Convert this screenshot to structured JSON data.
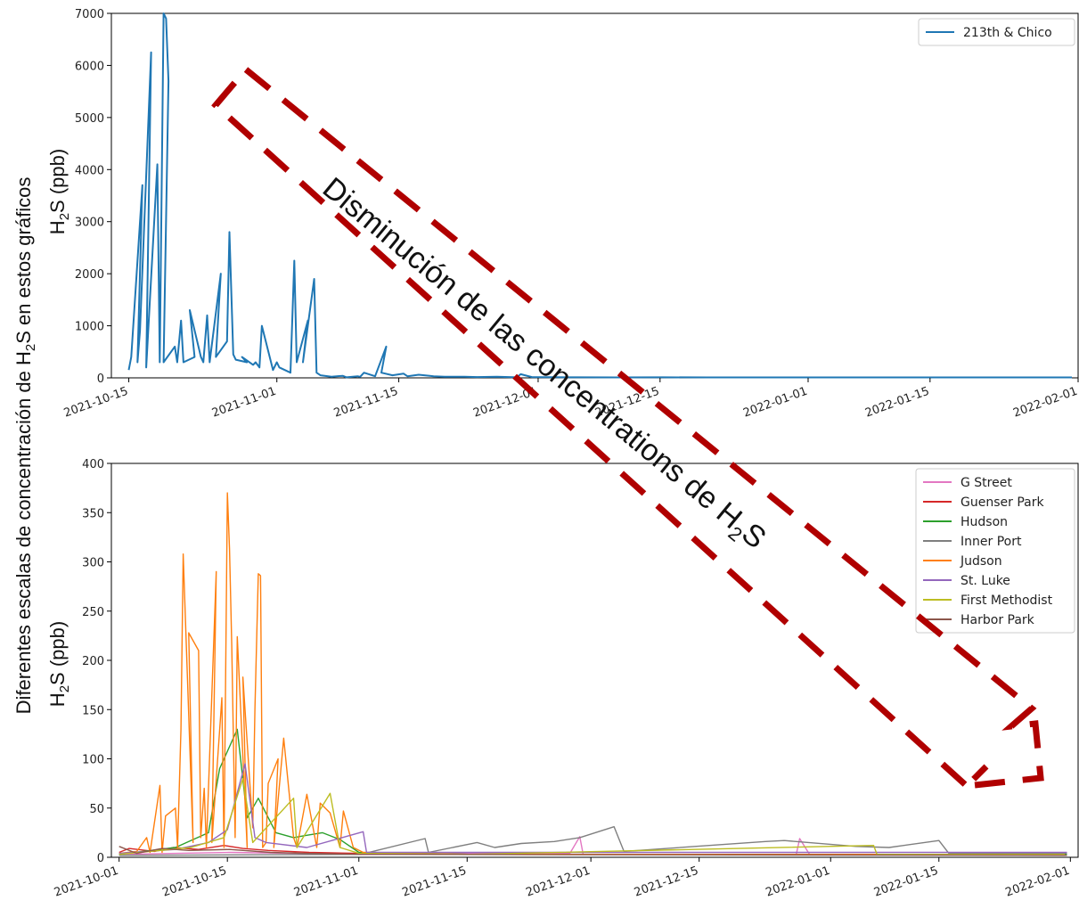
{
  "figure_ylabel_left": "Diferentes escalas de concentración de ",
  "figure_ylabel_h": "H",
  "figure_ylabel_sub": "2",
  "figure_ylabel_right": "S en estos gráficos",
  "annotation": {
    "text_main": "Disminución de las concentrations de H",
    "text_sub": "2",
    "text_tail": "S",
    "color": "#b00000"
  },
  "chart_data": [
    {
      "type": "line",
      "ylabel_main": "H",
      "ylabel_sub": "2",
      "ylabel_tail": "S (ppb)",
      "ylim": [
        0,
        7000
      ],
      "yticks": [
        "0",
        "1000",
        "2000",
        "3000",
        "4000",
        "5000",
        "6000",
        "7000"
      ],
      "xlim": [
        "2021-10-13",
        "2022-02-01"
      ],
      "xticks": [
        "2021-10-15",
        "2021-11-01",
        "2021-11-15",
        "2021-12-01",
        "2021-12-15",
        "2022-01-01",
        "2022-01-15",
        "2022-02-01"
      ],
      "legend_position": "top-right",
      "series": [
        {
          "name": "213th & Chico",
          "color": "#1f77b4",
          "points": [
            [
              "2021-10-15",
              150
            ],
            [
              "2021-10-15",
              400
            ],
            [
              "2021-10-16",
              3700
            ],
            [
              "2021-10-16",
              300
            ],
            [
              "2021-10-16",
              900
            ],
            [
              "2021-10-17",
              6250
            ],
            [
              "2021-10-17",
              200
            ],
            [
              "2021-10-18",
              4100
            ],
            [
              "2021-10-18",
              300
            ],
            [
              "2021-10-19",
              7000
            ],
            [
              "2021-10-19",
              6900
            ],
            [
              "2021-10-19",
              5700
            ],
            [
              "2021-10-19",
              300
            ],
            [
              "2021-10-20",
              600
            ],
            [
              "2021-10-20",
              300
            ],
            [
              "2021-10-21",
              1100
            ],
            [
              "2021-10-21",
              300
            ],
            [
              "2021-10-22",
              400
            ],
            [
              "2021-10-22",
              1300
            ],
            [
              "2021-10-23",
              400
            ],
            [
              "2021-10-23",
              300
            ],
            [
              "2021-10-24",
              1200
            ],
            [
              "2021-10-24",
              300
            ],
            [
              "2021-10-25",
              2000
            ],
            [
              "2021-10-25",
              400
            ],
            [
              "2021-10-26",
              700
            ],
            [
              "2021-10-26",
              2800
            ],
            [
              "2021-10-27",
              450
            ],
            [
              "2021-10-27",
              350
            ],
            [
              "2021-10-28",
              300
            ],
            [
              "2021-10-28",
              400
            ],
            [
              "2021-10-29",
              250
            ],
            [
              "2021-10-29",
              300
            ],
            [
              "2021-10-30",
              200
            ],
            [
              "2021-10-30",
              1000
            ],
            [
              "2021-10-31",
              150
            ],
            [
              "2021-11-01",
              300
            ],
            [
              "2021-11-01",
              200
            ],
            [
              "2021-11-02",
              100
            ],
            [
              "2021-11-03",
              2250
            ],
            [
              "2021-11-03",
              300
            ],
            [
              "2021-11-04",
              1100
            ],
            [
              "2021-11-04",
              300
            ],
            [
              "2021-11-05",
              1900
            ],
            [
              "2021-11-05",
              100
            ],
            [
              "2021-11-06",
              50
            ],
            [
              "2021-11-07",
              20
            ],
            [
              "2021-11-08",
              40
            ],
            [
              "2021-11-09",
              10
            ],
            [
              "2021-11-10",
              30
            ],
            [
              "2021-11-10",
              20
            ],
            [
              "2021-11-11",
              100
            ],
            [
              "2021-11-12",
              30
            ],
            [
              "2021-11-13",
              600
            ],
            [
              "2021-11-13",
              100
            ],
            [
              "2021-11-14",
              50
            ],
            [
              "2021-11-15",
              80
            ],
            [
              "2021-11-16",
              30
            ],
            [
              "2021-11-17",
              60
            ],
            [
              "2021-11-18",
              40
            ],
            [
              "2021-11-19",
              30
            ],
            [
              "2021-11-20",
              20
            ],
            [
              "2021-11-22",
              20
            ],
            [
              "2021-11-24",
              15
            ],
            [
              "2021-11-26",
              20
            ],
            [
              "2021-11-28",
              10
            ],
            [
              "2021-11-29",
              70
            ],
            [
              "2021-11-30",
              15
            ],
            [
              "2021-12-05",
              10
            ],
            [
              "2021-12-10",
              8
            ],
            [
              "2021-12-15",
              10
            ],
            [
              "2021-12-20",
              8
            ],
            [
              "2021-12-25",
              8
            ],
            [
              "2022-01-01",
              8
            ],
            [
              "2022-01-10",
              8
            ],
            [
              "2022-01-20",
              8
            ],
            [
              "2022-01-31",
              8
            ]
          ]
        }
      ]
    },
    {
      "type": "line",
      "ylabel_main": "H",
      "ylabel_sub": "2",
      "ylabel_tail": "S (ppb)",
      "ylim": [
        0,
        400
      ],
      "yticks": [
        "0",
        "50",
        "100",
        "150",
        "200",
        "250",
        "300",
        "350",
        "400"
      ],
      "xlim": [
        "2021-09-30",
        "2022-02-02"
      ],
      "xticks": [
        "2021-10-01",
        "2021-10-15",
        "2021-11-01",
        "2021-11-15",
        "2021-12-01",
        "2021-12-15",
        "2022-01-01",
        "2022-01-15",
        "2022-02-01"
      ],
      "legend_position": "top-right",
      "series": [
        {
          "name": "G Street",
          "color": "#e377c2",
          "points": [
            [
              "2021-10-01",
              3
            ],
            [
              "2021-10-15",
              5
            ],
            [
              "2021-11-01",
              3
            ],
            [
              "2021-11-15",
              4
            ],
            [
              "2021-11-28",
              4
            ],
            [
              "2021-11-29",
              21
            ],
            [
              "2021-11-30",
              3
            ],
            [
              "2021-12-15",
              3
            ],
            [
              "2021-12-27",
              3
            ],
            [
              "2021-12-28",
              19
            ],
            [
              "2021-12-29",
              3
            ],
            [
              "2022-01-31",
              3
            ]
          ]
        },
        {
          "name": "Guenser Park",
          "color": "#d62728",
          "points": [
            [
              "2021-10-01",
              5
            ],
            [
              "2021-10-02",
              9
            ],
            [
              "2021-10-05",
              6
            ],
            [
              "2021-10-08",
              10
            ],
            [
              "2021-10-11",
              8
            ],
            [
              "2021-10-14",
              12
            ],
            [
              "2021-10-17",
              9
            ],
            [
              "2021-10-20",
              7
            ],
            [
              "2021-10-25",
              5
            ],
            [
              "2021-11-01",
              4
            ],
            [
              "2021-11-15",
              3
            ],
            [
              "2021-12-01",
              3
            ],
            [
              "2022-01-01",
              3
            ],
            [
              "2022-01-31",
              3
            ]
          ]
        },
        {
          "name": "Hudson",
          "color": "#2ca02c",
          "points": [
            [
              "2021-10-01",
              3
            ],
            [
              "2021-10-08",
              10
            ],
            [
              "2021-10-12",
              25
            ],
            [
              "2021-10-14",
              90
            ],
            [
              "2021-10-16",
              130
            ],
            [
              "2021-10-17",
              40
            ],
            [
              "2021-10-19",
              60
            ],
            [
              "2021-10-21",
              25
            ],
            [
              "2021-10-23",
              20
            ],
            [
              "2021-10-25",
              22
            ],
            [
              "2021-10-27",
              25
            ],
            [
              "2021-10-29",
              18
            ],
            [
              "2021-11-01",
              5
            ],
            [
              "2021-11-15",
              3
            ],
            [
              "2022-01-31",
              3
            ]
          ]
        },
        {
          "name": "Inner Port",
          "color": "#7f7f7f",
          "points": [
            [
              "2021-10-01",
              2
            ],
            [
              "2021-11-01",
              3
            ],
            [
              "2021-11-09",
              19
            ],
            [
              "2021-11-10",
              5
            ],
            [
              "2021-11-16",
              15
            ],
            [
              "2021-11-18",
              10
            ],
            [
              "2021-11-22",
              14
            ],
            [
              "2021-11-26",
              16
            ],
            [
              "2021-11-29",
              20
            ],
            [
              "2021-12-04",
              31
            ],
            [
              "2021-12-05",
              6
            ],
            [
              "2021-12-23",
              16
            ],
            [
              "2021-12-26",
              17
            ],
            [
              "2022-01-04",
              11
            ],
            [
              "2022-01-08",
              10
            ],
            [
              "2022-01-15",
              17
            ],
            [
              "2022-01-16",
              4
            ],
            [
              "2022-01-31",
              4
            ]
          ]
        },
        {
          "name": "Judson",
          "color": "#ff7f0e",
          "points": [
            [
              "2021-10-01",
              4
            ],
            [
              "2021-10-03",
              6
            ],
            [
              "2021-10-04",
              20
            ],
            [
              "2021-10-05",
              5
            ],
            [
              "2021-10-06",
              73
            ],
            [
              "2021-10-06",
              5
            ],
            [
              "2021-10-07",
              42
            ],
            [
              "2021-10-08",
              50
            ],
            [
              "2021-10-08",
              10
            ],
            [
              "2021-10-09",
              130
            ],
            [
              "2021-10-09",
              308
            ],
            [
              "2021-10-10",
              15
            ],
            [
              "2021-10-10",
              228
            ],
            [
              "2021-10-11",
              210
            ],
            [
              "2021-10-11",
              20
            ],
            [
              "2021-10-12",
              70
            ],
            [
              "2021-10-12",
              10
            ],
            [
              "2021-10-13",
              290
            ],
            [
              "2021-10-13",
              15
            ],
            [
              "2021-10-14",
              162
            ],
            [
              "2021-10-14",
              10
            ],
            [
              "2021-10-15",
              370
            ],
            [
              "2021-10-15",
              313
            ],
            [
              "2021-10-15",
              215
            ],
            [
              "2021-10-16",
              20
            ],
            [
              "2021-10-16",
              224
            ],
            [
              "2021-10-17",
              10
            ],
            [
              "2021-10-17",
              183
            ],
            [
              "2021-10-18",
              30
            ],
            [
              "2021-10-18",
              150
            ],
            [
              "2021-10-19",
              288
            ],
            [
              "2021-10-19",
              286
            ],
            [
              "2021-10-19",
              10
            ],
            [
              "2021-10-20",
              15
            ],
            [
              "2021-10-20",
              75
            ],
            [
              "2021-10-21",
              100
            ],
            [
              "2021-10-21",
              10
            ],
            [
              "2021-10-22",
              121
            ],
            [
              "2021-10-23",
              20
            ],
            [
              "2021-10-24",
              10
            ],
            [
              "2021-10-25",
              64
            ],
            [
              "2021-10-26",
              10
            ],
            [
              "2021-10-27",
              55
            ],
            [
              "2021-10-28",
              45
            ],
            [
              "2021-10-29",
              10
            ],
            [
              "2021-10-30",
              47
            ],
            [
              "2021-10-31",
              10
            ],
            [
              "2021-11-01",
              5
            ],
            [
              "2021-11-15",
              3
            ],
            [
              "2022-01-31",
              3
            ]
          ]
        },
        {
          "name": "St. Luke",
          "color": "#9467bd",
          "points": [
            [
              "2021-10-01",
              4
            ],
            [
              "2021-10-08",
              8
            ],
            [
              "2021-10-12",
              15
            ],
            [
              "2021-10-15",
              28
            ],
            [
              "2021-10-17",
              95
            ],
            [
              "2021-10-18",
              20
            ],
            [
              "2021-10-20",
              15
            ],
            [
              "2021-10-25",
              10
            ],
            [
              "2021-11-01",
              26
            ],
            [
              "2021-11-02",
              5
            ],
            [
              "2021-11-15",
              5
            ],
            [
              "2021-12-01",
              5
            ],
            [
              "2021-12-15",
              5
            ],
            [
              "2022-01-01",
              5
            ],
            [
              "2022-01-31",
              5
            ]
          ]
        },
        {
          "name": "First Methodist",
          "color": "#bcbd22",
          "points": [
            [
              "2021-10-01",
              3
            ],
            [
              "2021-10-10",
              10
            ],
            [
              "2021-10-14",
              20
            ],
            [
              "2021-10-17",
              80
            ],
            [
              "2021-10-18",
              15
            ],
            [
              "2021-10-23",
              60
            ],
            [
              "2021-10-24",
              10
            ],
            [
              "2021-10-28",
              65
            ],
            [
              "2021-10-29",
              10
            ],
            [
              "2021-11-01",
              4
            ],
            [
              "2021-11-15",
              3
            ],
            [
              "2022-01-06",
              12
            ],
            [
              "2022-01-07",
              3
            ],
            [
              "2022-01-31",
              3
            ]
          ]
        },
        {
          "name": "Harbor Park",
          "color": "#8c564b",
          "points": [
            [
              "2021-10-01",
              11
            ],
            [
              "2021-10-03",
              4
            ],
            [
              "2021-10-06",
              9
            ],
            [
              "2021-10-10",
              7
            ],
            [
              "2021-10-15",
              8
            ],
            [
              "2021-10-20",
              5
            ],
            [
              "2021-10-25",
              4
            ],
            [
              "2021-11-01",
              3
            ],
            [
              "2022-01-31",
              2
            ]
          ]
        }
      ]
    }
  ]
}
